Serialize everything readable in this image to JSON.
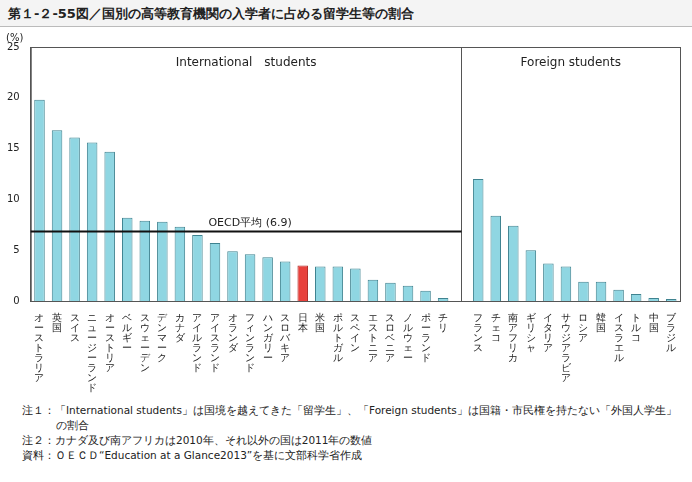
{
  "title": "第１-２-55図／国別の高等教育機関の入学者に占める留学生等の割合",
  "notes": [
    "注１：「International students」は国境を越えてきた「留学生」、「Foreign students」は国籍・市民権を持たない「外国人学生」の割合",
    "注２：カナダ及び南アフリカは2010年、それ以外の国は2011年の数値",
    "資料：ＯＥＣＤ“Education at a Glance2013”を基に文部科学省作成"
  ],
  "chart_data": {
    "type": "bar",
    "y_label": "(%)",
    "group_labels": [
      "International　students",
      "Foreign students"
    ],
    "categories": [
      "オーストラリア",
      "英国",
      "スイス",
      "ニュージーランド",
      "オーストリア",
      "ベルギー",
      "スウェーデン",
      "デンマーク",
      "カナダ",
      "アイルランド",
      "アイスランド",
      "オランダ",
      "フィンランド",
      "ハンガリー",
      "スロバキア",
      "日本",
      "米国",
      "ポルトガル",
      "スペイン",
      "エストニア",
      "スロベニア",
      "ノルウェー",
      "ポーランド",
      "チリ",
      null,
      "フランス",
      "チェコ",
      "南アフリカ",
      "ギリシャ",
      "イタリア",
      "サウジアラビア",
      "ロシア",
      "韓国",
      "イスラエル",
      "トルコ",
      "中国",
      "ブラジル"
    ],
    "values": [
      19.8,
      16.8,
      16.1,
      15.6,
      14.7,
      8.2,
      7.9,
      7.8,
      7.3,
      6.5,
      5.7,
      4.9,
      4.6,
      4.3,
      3.9,
      3.5,
      3.4,
      3.4,
      3.2,
      2.1,
      1.8,
      1.5,
      1.0,
      0.3,
      null,
      12.0,
      8.4,
      7.4,
      5.0,
      3.7,
      3.4,
      1.9,
      1.9,
      1.1,
      0.7,
      0.3,
      0.2
    ],
    "colors": [
      "#8fd6e2",
      "#8fd6e2",
      "#8fd6e2",
      "#8fd6e2",
      "#8fd6e2",
      "#8fd6e2",
      "#8fd6e2",
      "#8fd6e2",
      "#8fd6e2",
      "#8fd6e2",
      "#8fd6e2",
      "#8fd6e2",
      "#8fd6e2",
      "#8fd6e2",
      "#8fd6e2",
      "#e8413c",
      "#8fd6e2",
      "#8fd6e2",
      "#8fd6e2",
      "#8fd6e2",
      "#8fd6e2",
      "#8fd6e2",
      "#8fd6e2",
      "#8fd6e2",
      null,
      "#8fd6e2",
      "#8fd6e2",
      "#8fd6e2",
      "#8fd6e2",
      "#8fd6e2",
      "#8fd6e2",
      "#8fd6e2",
      "#8fd6e2",
      "#8fd6e2",
      "#8fd6e2",
      "#8fd6e2",
      "#8fd6e2"
    ],
    "reference_line": {
      "value": 6.9,
      "label": "OECD平均 (6.9)"
    },
    "ylim": [
      0,
      25
    ],
    "yticks": [
      0,
      5,
      10,
      15,
      20,
      25
    ],
    "grid": false,
    "legend": false,
    "data_labels": false
  }
}
